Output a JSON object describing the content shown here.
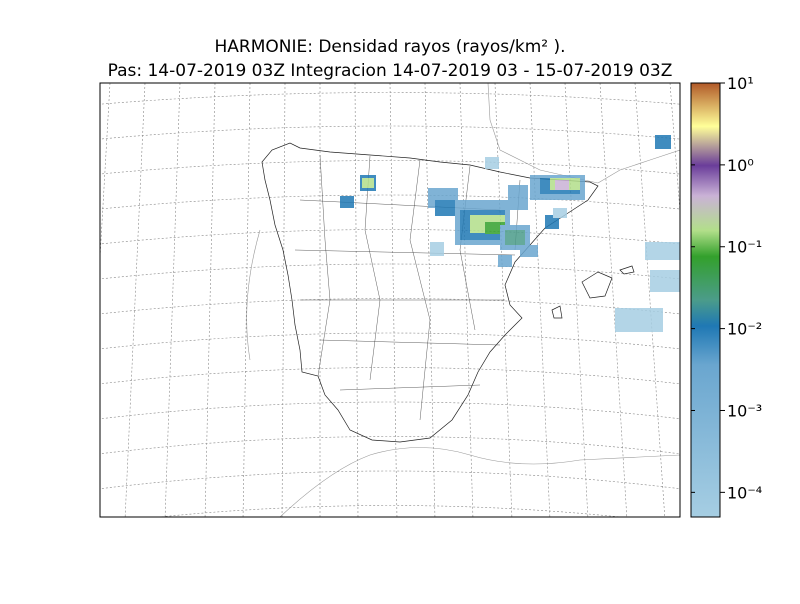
{
  "map": {
    "title": "HARMONIE: Densidad rayos  (rayos/km² ).",
    "subtitle": "Pas: 14-07-2019 03Z Integracion 14-07-2019 03 - 15-07-2019 03Z",
    "colorbar": {
      "scale": "log",
      "lim": [
        5e-05,
        10
      ],
      "ticks": [
        {
          "value": 10,
          "label": "10¹"
        },
        {
          "value": 1,
          "label": "10⁰"
        },
        {
          "value": 0.1,
          "label": "10⁻¹"
        },
        {
          "value": 0.01,
          "label": "10⁻²"
        },
        {
          "value": 0.001,
          "label": "10⁻³"
        },
        {
          "value": 0.0001,
          "label": "10⁻⁴"
        }
      ]
    }
  }
}
